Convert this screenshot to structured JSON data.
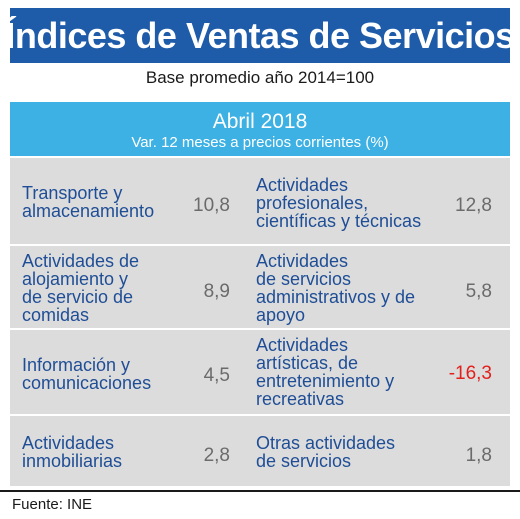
{
  "title": "Índices de Ventas de Servicios",
  "subtitle": "Base promedio año 2014=100",
  "header": {
    "period": "Abril 2018",
    "note": "Var. 12 meses a precios corrientes (%)"
  },
  "rows": [
    {
      "left": {
        "label": [
          "Transporte y",
          "almacenamiento"
        ],
        "value": "10,8"
      },
      "right": {
        "label": [
          "Actividades",
          "profesionales,",
          "científicas y técnicas"
        ],
        "value": "12,8"
      }
    },
    {
      "left": {
        "label": [
          "Actividades de",
          "alojamiento y",
          "de servicio de",
          "comidas"
        ],
        "value": "8,9"
      },
      "right": {
        "label": [
          "Actividades",
          "de servicios",
          "administrativos y de",
          "apoyo"
        ],
        "value": "5,8"
      }
    },
    {
      "left": {
        "label": [
          "Información y",
          "comunicaciones"
        ],
        "value": "4,5"
      },
      "right": {
        "label": [
          "Actividades",
          "artísticas, de",
          "entretenimiento y",
          "recreativas"
        ],
        "value": "-16,3"
      }
    },
    {
      "left": {
        "label": [
          "Actividades",
          "inmobiliarias"
        ],
        "value": "2,8"
      },
      "right": {
        "label": [
          "Otras actividades",
          "de servicios"
        ],
        "value": "1,8"
      }
    }
  ],
  "source": "Fuente: INE",
  "colors": {
    "title_bg": "#1e5ba8",
    "header_bg": "#3db1e3",
    "panel_bg": "#dcdcdc",
    "label": "#1f4e96",
    "value": "#6b6b6b",
    "negative": "#e2201c"
  }
}
